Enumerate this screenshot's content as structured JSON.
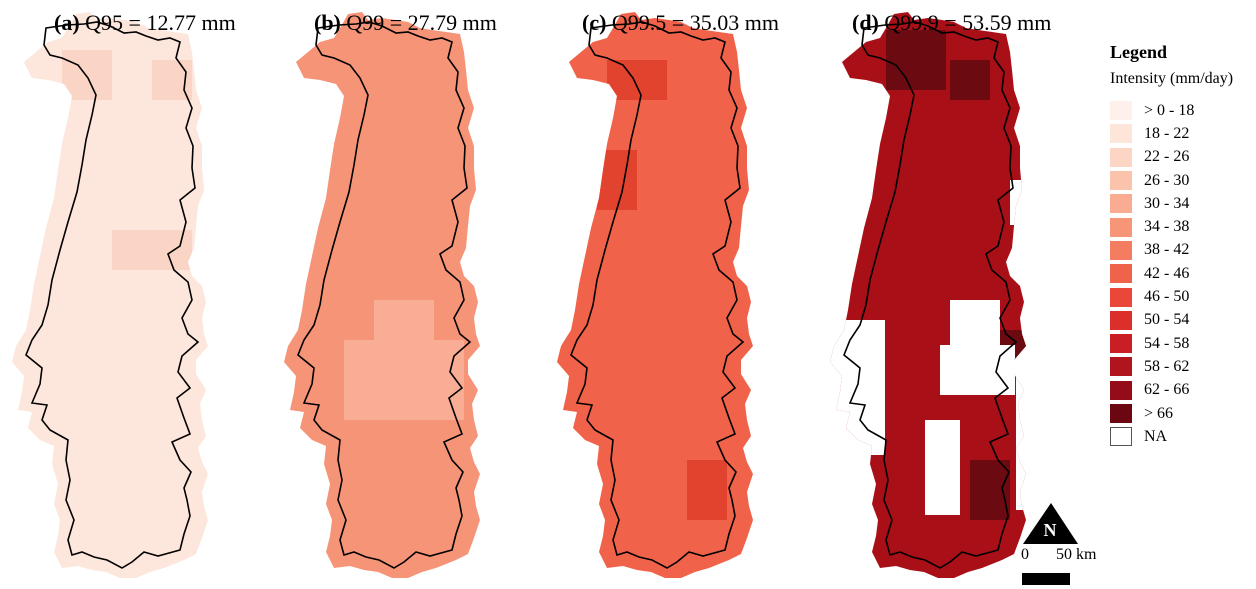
{
  "panels": [
    {
      "id": "a",
      "letter": "(a)",
      "title": "Q95 = 12.77 mm",
      "fill": "#fde6db",
      "patch_fill": "#fad5c6"
    },
    {
      "id": "b",
      "letter": "(b)",
      "title": "Q99 = 27.79 mm",
      "fill": "#f69478",
      "patch_fill": "#f8ad94"
    },
    {
      "id": "c",
      "letter": "(c)",
      "title": "Q99.5 = 35.03 mm",
      "fill": "#f0634a",
      "patch_fill": "#e2432f"
    },
    {
      "id": "d",
      "letter": "(d)",
      "title": "Q99.9 = 53.59 mm",
      "fill": "#a90f17",
      "patch_fill": "#6b0a10"
    }
  ],
  "legend": {
    "title": "Legend",
    "subtitle": "Intensity (mm/day)",
    "items": [
      {
        "label": "> 0 - 18",
        "color": "#fef1ec"
      },
      {
        "label": "18 - 22",
        "color": "#fde5da"
      },
      {
        "label": "22 - 26",
        "color": "#fcd5c4"
      },
      {
        "label": "26 - 30",
        "color": "#fbc2ac"
      },
      {
        "label": "30 - 34",
        "color": "#f9ac92"
      },
      {
        "label": "34 - 38",
        "color": "#f79579"
      },
      {
        "label": "38 - 42",
        "color": "#f47d61"
      },
      {
        "label": "42 - 46",
        "color": "#ef634b"
      },
      {
        "label": "46 - 50",
        "color": "#e9473a"
      },
      {
        "label": "50 - 54",
        "color": "#dc2f2c"
      },
      {
        "label": "54 - 58",
        "color": "#c81e24"
      },
      {
        "label": "58 - 62",
        "color": "#b0141d"
      },
      {
        "label": "62 - 66",
        "color": "#940c17"
      },
      {
        "label": "> 66",
        "color": "#6b0711"
      },
      {
        "label": "NA",
        "color": "#ffffff"
      }
    ]
  },
  "north_arrow": {
    "label": "N"
  },
  "scale_bar": {
    "start": "0",
    "end": "50 km"
  }
}
